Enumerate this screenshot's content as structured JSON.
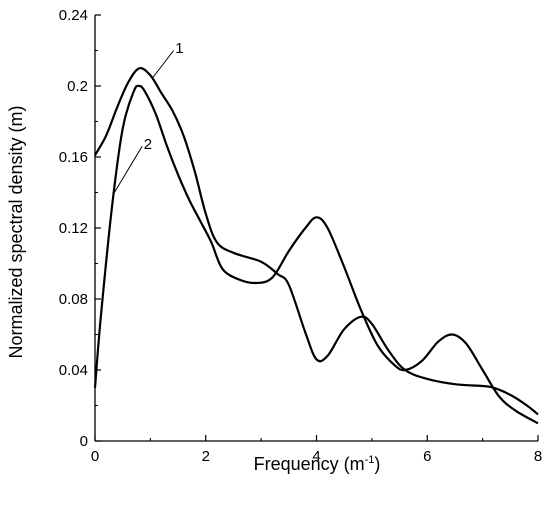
{
  "chart_data": {
    "type": "line",
    "xlabel": "Frequency (m",
    "xlabel_sup": "-1",
    "xlabel_close": ")",
    "ylabel": "Normalized spectral density (m)",
    "xlim": [
      0,
      8
    ],
    "ylim": [
      0,
      0.24
    ],
    "xticks": [
      "0",
      "2",
      "4",
      "6",
      "8"
    ],
    "yticks": [
      "0",
      "0.04",
      "0.08",
      "0.12",
      "0.16",
      "0.2",
      "0.24"
    ],
    "grid": false,
    "series": [
      {
        "label": "1",
        "x": [
          0,
          0.2,
          0.4,
          0.6,
          0.8,
          1.0,
          1.2,
          1.4,
          1.6,
          1.8,
          2.0,
          2.2,
          2.5,
          3.0,
          3.3,
          3.5,
          3.8,
          4.0,
          4.2,
          4.5,
          4.8,
          5.0,
          5.3,
          5.6,
          6.0,
          6.5,
          7.0,
          7.2,
          7.5,
          7.8,
          8.0
        ],
        "y": [
          0.161,
          0.172,
          0.188,
          0.202,
          0.21,
          0.206,
          0.196,
          0.186,
          0.172,
          0.152,
          0.128,
          0.112,
          0.106,
          0.101,
          0.094,
          0.088,
          0.061,
          0.046,
          0.048,
          0.063,
          0.07,
          0.066,
          0.051,
          0.04,
          0.035,
          0.032,
          0.031,
          0.03,
          0.026,
          0.02,
          0.015
        ]
      },
      {
        "label": "2",
        "x": [
          0,
          0.1,
          0.3,
          0.5,
          0.7,
          0.8,
          0.9,
          1.1,
          1.3,
          1.5,
          1.7,
          1.9,
          2.1,
          2.3,
          2.6,
          2.9,
          3.2,
          3.5,
          3.8,
          4.0,
          4.2,
          4.5,
          4.8,
          5.1,
          5.4,
          5.6,
          5.9,
          6.2,
          6.45,
          6.7,
          7.0,
          7.3,
          7.6,
          8.0
        ],
        "y": [
          0.03,
          0.068,
          0.13,
          0.176,
          0.197,
          0.2,
          0.197,
          0.184,
          0.166,
          0.15,
          0.136,
          0.124,
          0.112,
          0.097,
          0.091,
          0.089,
          0.092,
          0.107,
          0.12,
          0.126,
          0.12,
          0.098,
          0.074,
          0.054,
          0.043,
          0.04,
          0.045,
          0.056,
          0.06,
          0.055,
          0.04,
          0.025,
          0.017,
          0.01
        ]
      }
    ]
  }
}
